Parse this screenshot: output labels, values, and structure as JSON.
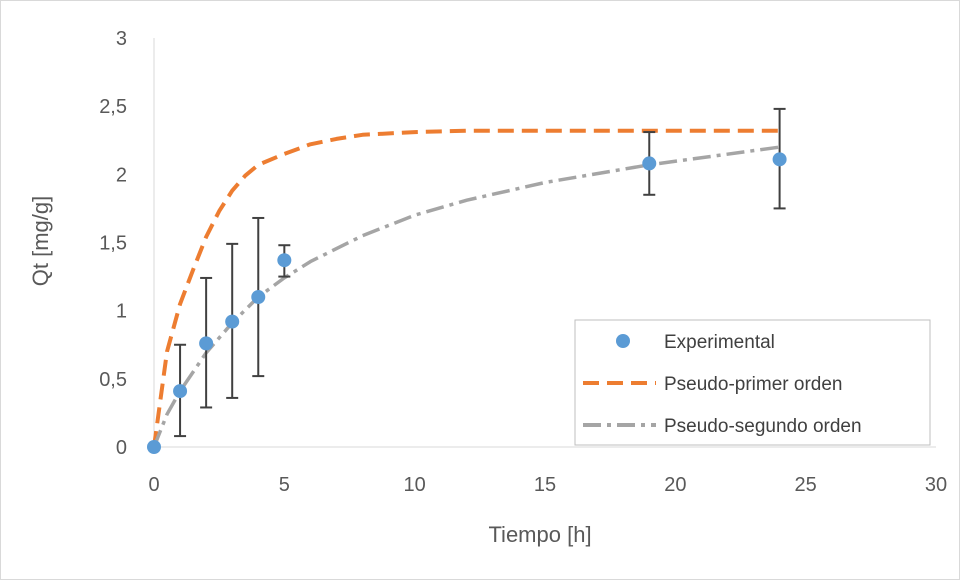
{
  "chart_data": {
    "type": "scatter",
    "title": "",
    "xlabel": "Tiempo [h]",
    "ylabel": "Qt [mg/g]",
    "xlim": [
      0,
      30
    ],
    "ylim": [
      0,
      3
    ],
    "x_ticks": [
      0,
      5,
      10,
      15,
      20,
      25,
      30
    ],
    "y_ticks": [
      0,
      0.5,
      1,
      1.5,
      2,
      2.5,
      3
    ],
    "x_tick_labels": [
      "0",
      "5",
      "10",
      "15",
      "20",
      "25",
      "30"
    ],
    "y_tick_labels": [
      "0",
      "0,5",
      "1",
      "1,5",
      "2",
      "2,5",
      "3"
    ],
    "grid": false,
    "legend_position": "bottom-right",
    "series": [
      {
        "name": "Experimental",
        "kind": "points",
        "color": "#5b9bd5",
        "x": [
          0,
          1,
          2,
          3,
          4,
          5,
          19,
          24
        ],
        "y": [
          0,
          0.41,
          0.76,
          0.92,
          1.1,
          1.37,
          2.08,
          2.11
        ],
        "err_low": [
          0,
          0.08,
          0.29,
          0.36,
          0.52,
          1.25,
          1.85,
          1.75
        ],
        "err_high": [
          0,
          0.75,
          1.24,
          1.49,
          1.68,
          1.48,
          2.31,
          2.48
        ]
      },
      {
        "name": "Pseudo-primer orden",
        "kind": "line",
        "style": "dashed",
        "color": "#ed7d31",
        "x": [
          0,
          0.5,
          1,
          1.5,
          2,
          2.5,
          3,
          3.5,
          4,
          5,
          6,
          7,
          8,
          10,
          12,
          15,
          20,
          24
        ],
        "y": [
          0,
          0.7,
          1.05,
          1.3,
          1.54,
          1.73,
          1.88,
          1.99,
          2.07,
          2.15,
          2.22,
          2.26,
          2.29,
          2.31,
          2.32,
          2.32,
          2.32,
          2.32
        ]
      },
      {
        "name": "Pseudo-segundo orden",
        "kind": "line",
        "style": "dashdot",
        "color": "#a5a5a5",
        "x": [
          0,
          0.5,
          1,
          2,
          3,
          4,
          5,
          6,
          8,
          10,
          12,
          15,
          19,
          24
        ],
        "y": [
          0,
          0.24,
          0.41,
          0.69,
          0.91,
          1.1,
          1.24,
          1.36,
          1.55,
          1.7,
          1.81,
          1.94,
          2.07,
          2.2
        ]
      }
    ]
  }
}
